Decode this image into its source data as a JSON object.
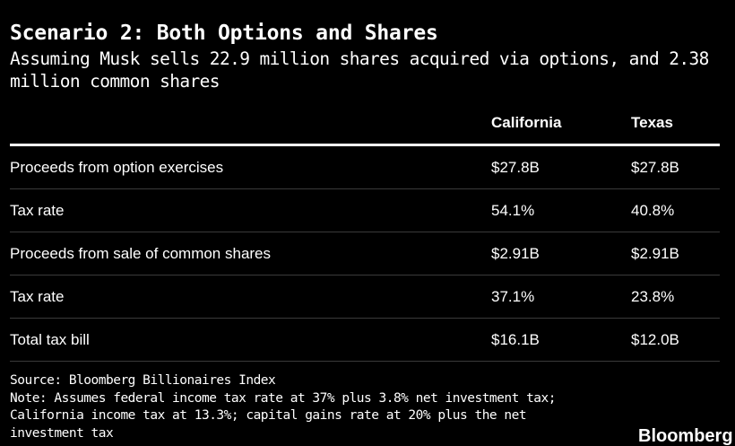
{
  "header": {
    "title": "Scenario 2: Both Options and Shares",
    "subtitle": "Assuming Musk sells 22.9 million shares acquired via options, and 2.38 million common shares"
  },
  "chart_data": {
    "type": "table",
    "columns": [
      "",
      "California",
      "Texas"
    ],
    "rows": [
      {
        "label": "Proceeds from option exercises",
        "california": "$27.8B",
        "texas": "$27.8B"
      },
      {
        "label": "Tax rate",
        "california": "54.1%",
        "texas": "40.8%"
      },
      {
        "label": "Proceeds from sale of common shares",
        "california": "$2.91B",
        "texas": "$2.91B"
      },
      {
        "label": "Tax rate",
        "california": "37.1%",
        "texas": "23.8%"
      },
      {
        "label": "Total tax bill",
        "california": "$16.1B",
        "texas": "$12.0B"
      }
    ]
  },
  "footer": {
    "source": "Source: Bloomberg Billionaires Index",
    "note": "Note: Assumes federal income tax rate at 37% plus 3.8% net investment tax; California income tax at 13.3%; capital gains rate at 20% plus the net investment tax"
  },
  "logo": {
    "text": "Bloomberg"
  },
  "colors": {
    "background": "#000000",
    "text": "#ffffff",
    "divider": "#3a3a3a"
  }
}
